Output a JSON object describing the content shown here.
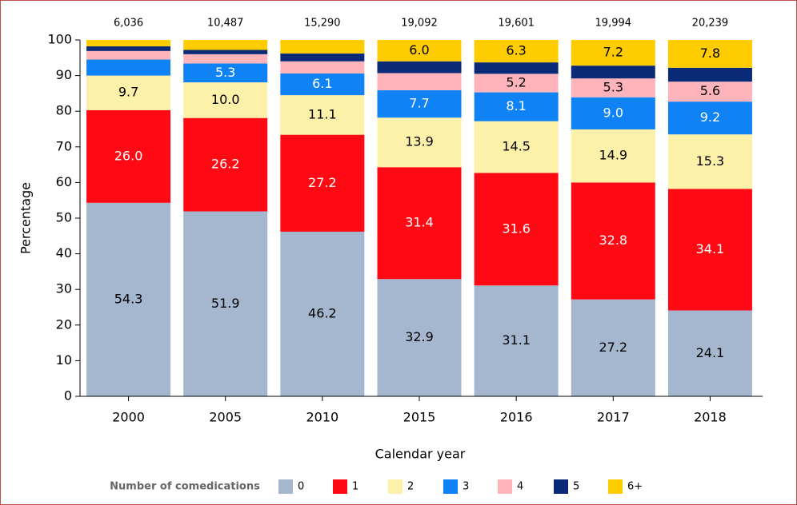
{
  "chart_data": {
    "type": "stacked_bar",
    "categories": [
      "2000",
      "2005",
      "2010",
      "2015",
      "2016",
      "2017",
      "2018"
    ],
    "annotations": [
      "6,036",
      "10,487",
      "15,290",
      "19,092",
      "19,601",
      "19,994",
      "20,239"
    ],
    "x_label": "Calendar year",
    "y_label": "Percentage",
    "legend_title": "Number of comedications",
    "ylim": [
      0,
      100
    ],
    "yticks": [
      0,
      10,
      20,
      30,
      40,
      50,
      60,
      70,
      80,
      90,
      100
    ],
    "series": [
      {
        "name": "0",
        "color": "#a5b6cf",
        "label_color": "#000000",
        "values": [
          54.3,
          51.9,
          46.2,
          32.9,
          31.1,
          27.2,
          24.1
        ],
        "value_labels": [
          "54.3",
          "51.9",
          "46.2",
          "32.9",
          "31.1",
          "27.2",
          "24.1"
        ]
      },
      {
        "name": "1",
        "color": "#ff0a14",
        "label_color": "#ffffff",
        "values": [
          26.0,
          26.2,
          27.2,
          31.4,
          31.6,
          32.8,
          34.1
        ],
        "value_labels": [
          "26.0",
          "26.2",
          "27.2",
          "31.4",
          "31.6",
          "32.8",
          "34.1"
        ]
      },
      {
        "name": "2",
        "color": "#fdf0a8",
        "label_color": "#000000",
        "values": [
          9.7,
          10.0,
          11.1,
          13.9,
          14.5,
          14.9,
          15.3
        ],
        "value_labels": [
          "9.7",
          "10.0",
          "11.1",
          "13.9",
          "14.5",
          "14.9",
          "15.3"
        ]
      },
      {
        "name": "3",
        "color": "#0f82f5",
        "label_color": "#ffffff",
        "values": [
          4.5,
          5.3,
          6.1,
          7.7,
          8.1,
          9.0,
          9.2
        ],
        "value_labels": [
          null,
          "5.3",
          "6.1",
          "7.7",
          "8.1",
          "9.0",
          "9.2"
        ]
      },
      {
        "name": "4",
        "color": "#ffb3bb",
        "label_color": "#000000",
        "values": [
          2.4,
          2.6,
          3.4,
          4.8,
          5.2,
          5.3,
          5.6
        ],
        "value_labels": [
          null,
          null,
          null,
          null,
          "5.2",
          "5.3",
          "5.6"
        ]
      },
      {
        "name": "5",
        "color": "#0a2a78",
        "label_color": "#ffffff",
        "values": [
          1.3,
          1.2,
          2.2,
          3.3,
          3.2,
          3.6,
          3.9
        ],
        "value_labels": [
          null,
          null,
          null,
          null,
          null,
          null,
          null
        ]
      },
      {
        "name": "6+",
        "color": "#ffcc00",
        "label_color": "#000000",
        "values": [
          1.8,
          2.8,
          3.8,
          6.0,
          6.3,
          7.2,
          7.8
        ],
        "value_labels": [
          null,
          null,
          null,
          "6.0",
          "6.3",
          "7.2",
          "7.8"
        ]
      }
    ]
  }
}
